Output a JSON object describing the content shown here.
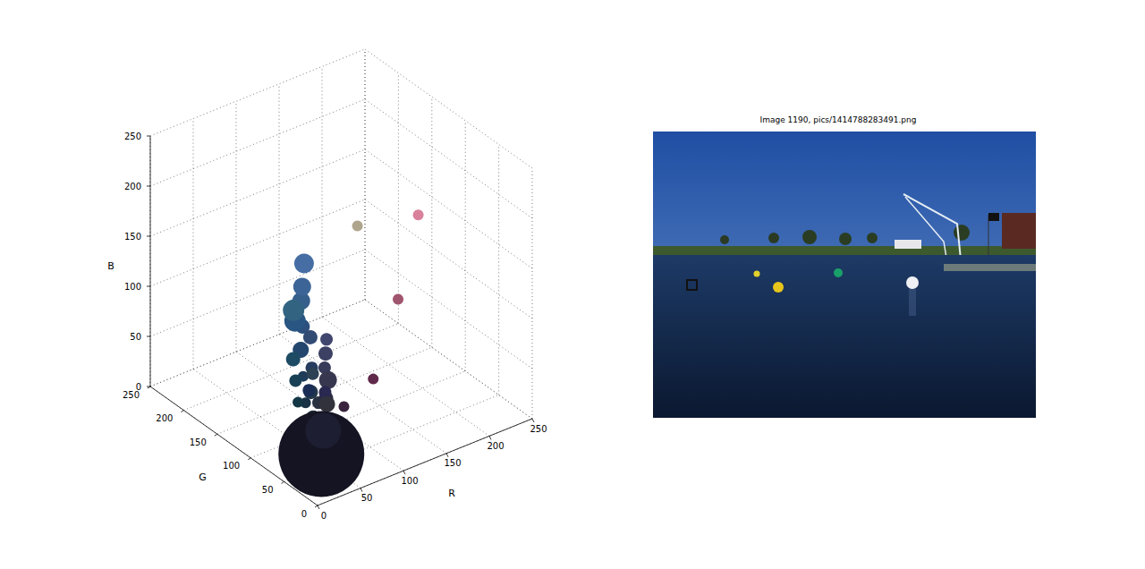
{
  "chart_data": [
    {
      "type": "scatter3d",
      "x_label": "R",
      "y_label": "G",
      "z_label": "B",
      "xlim": [
        0,
        250
      ],
      "ylim": [
        0,
        250
      ],
      "zlim": [
        0,
        250
      ],
      "xticks": [
        0,
        50,
        100,
        150,
        200,
        250
      ],
      "yticks": [
        0,
        50,
        100,
        150,
        200,
        250
      ],
      "zticks": [
        0,
        50,
        100,
        150,
        200,
        250
      ],
      "grid": true,
      "x": [
        70,
        45,
        55,
        40,
        35,
        50,
        40,
        30,
        45,
        35,
        25,
        40,
        30,
        25,
        35,
        20,
        30,
        25,
        55,
        60,
        45,
        55,
        20,
        25,
        30,
        50,
        60,
        40,
        65,
        35,
        50,
        20,
        30,
        175,
        217,
        160,
        96,
        58
      ],
      "y": [
        110,
        80,
        95,
        85,
        70,
        75,
        60,
        60,
        65,
        55,
        50,
        50,
        45,
        40,
        40,
        35,
        30,
        45,
        60,
        65,
        45,
        55,
        55,
        65,
        75,
        100,
        100,
        40,
        70,
        35,
        50,
        20,
        30,
        165,
        128,
        85,
        40,
        35
      ],
      "z": [
        165,
        125,
        140,
        130,
        110,
        115,
        95,
        90,
        85,
        75,
        70,
        65,
        55,
        50,
        45,
        45,
        35,
        85,
        90,
        100,
        70,
        80,
        70,
        85,
        100,
        130,
        150,
        80,
        110,
        55,
        60,
        35,
        50,
        140,
        154,
        110,
        74,
        62
      ],
      "sizes": [
        121,
        64,
        100,
        144,
        81,
        64,
        49,
        36,
        49,
        64,
        36,
        49,
        81,
        64,
        49,
        36,
        100,
        49,
        49,
        64,
        64,
        100,
        36,
        49,
        64,
        144,
        100,
        49,
        49,
        144,
        81,
        2304,
        400,
        36,
        36,
        36,
        36,
        36
      ]
    },
    {
      "type": "image",
      "title": "Image 1190, pics/1414788283491.png"
    }
  ]
}
